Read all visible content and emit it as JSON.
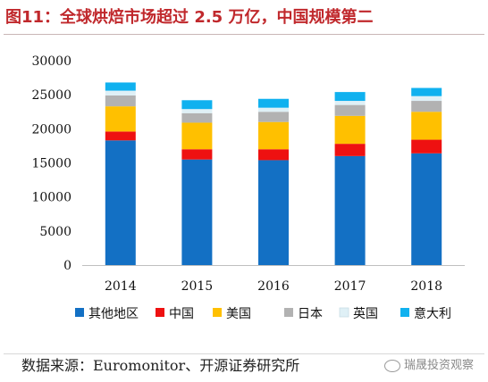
{
  "title": "图11：全球烘焙市场超过 2.5 万亿，中国规模第二",
  "source": "数据来源：Euromonitor、开源证券研究所",
  "watermark": "瑞晟投资观察",
  "chart_data": {
    "type": "bar",
    "stacked": true,
    "categories": [
      "2014",
      "2015",
      "2016",
      "2017",
      "2018"
    ],
    "ylim": [
      0,
      30000
    ],
    "yticks": [
      0,
      5000,
      10000,
      15000,
      20000,
      25000,
      30000
    ],
    "legend_position": "bottom",
    "series": [
      {
        "name": "其他地区",
        "color": "#1370c4",
        "values": [
          18300,
          15500,
          15400,
          16000,
          16400
        ]
      },
      {
        "name": "中国",
        "color": "#ee1111",
        "values": [
          1300,
          1500,
          1600,
          1800,
          2000
        ]
      },
      {
        "name": "美国",
        "color": "#ffc000",
        "values": [
          3700,
          3900,
          4000,
          4100,
          4100
        ]
      },
      {
        "name": "日本",
        "color": "#b2b2b2",
        "values": [
          1600,
          1400,
          1500,
          1600,
          1600
        ]
      },
      {
        "name": "英国",
        "color": "#dff0f6",
        "values": [
          700,
          600,
          600,
          600,
          700
        ]
      },
      {
        "name": "意大利",
        "color": "#10b1ef",
        "values": [
          1200,
          1300,
          1300,
          1300,
          1200
        ]
      }
    ]
  }
}
